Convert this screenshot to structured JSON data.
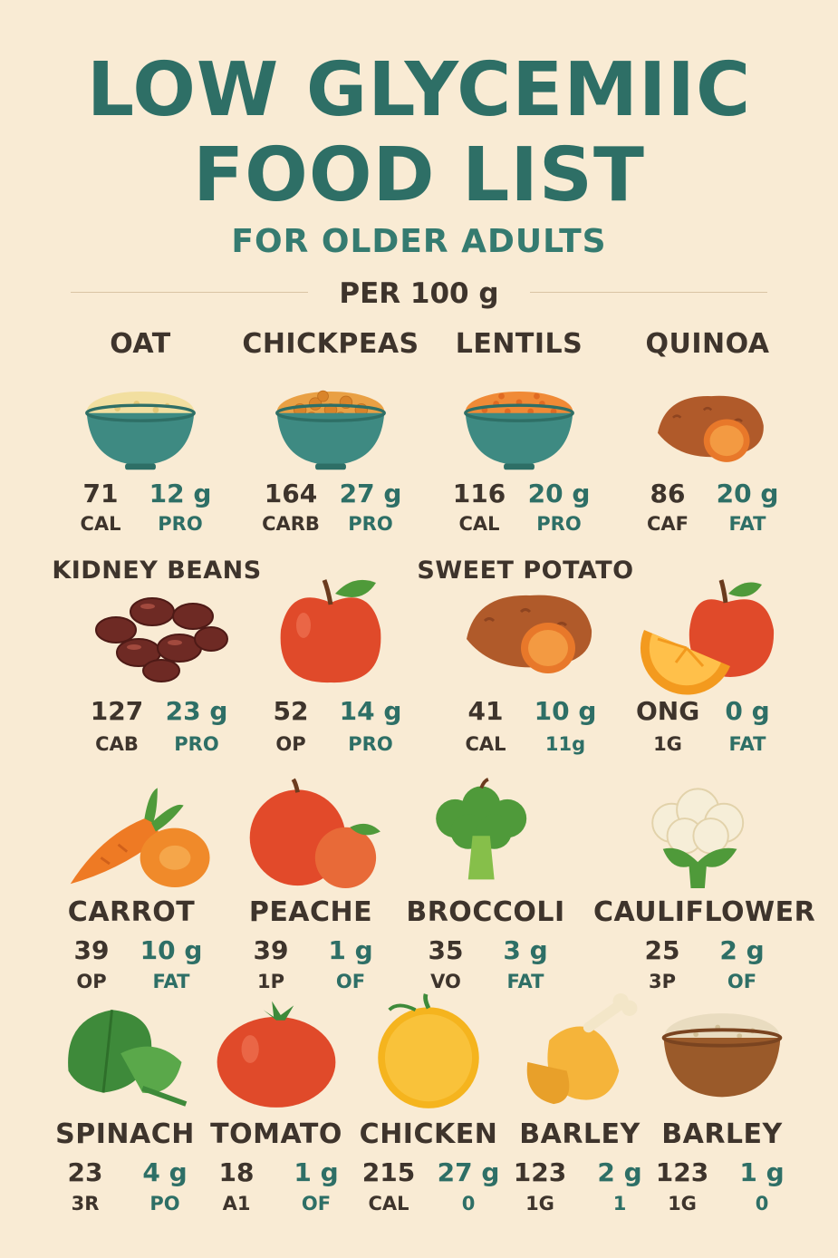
{
  "title": {
    "line1": "LOW GLYCEMIIC",
    "line2": "FOOD LIST",
    "subtitle": "FOR OLDER ADULTS",
    "per": "PER 100 g"
  },
  "colors": {
    "title": "#2e6f66",
    "background": "#f9ebd4",
    "text": "#3e342c",
    "accent_values": "#2e6f66"
  },
  "rows": [
    {
      "items": [
        {
          "name": "OAT",
          "icon": "oat-bowl-icon",
          "v1": "71",
          "l1": "CAL",
          "v2": "12 g",
          "l2": "PRO"
        },
        {
          "name": "CHICKPEAS",
          "icon": "chickpeas-bowl-icon",
          "v1": "164",
          "l1": "CARB",
          "v2": "27 g",
          "l2": "PRO"
        },
        {
          "name": "LENTILS",
          "icon": "lentils-bowl-icon",
          "v1": "116",
          "l1": "CAL",
          "v2": "20 g",
          "l2": "PRO"
        },
        {
          "name": "QUINOA",
          "icon": "sweet-potato-icon",
          "v1": "86",
          "l1": "CAF",
          "v2": "20 g",
          "l2": "FAT"
        }
      ]
    },
    {
      "items": [
        {
          "name": "KIDNEY BEANS",
          "icon": "kidney-beans-icon",
          "v1": "127",
          "l1": "CAB",
          "v2": "23 g",
          "l2": "PRO"
        },
        {
          "name": "",
          "icon": "apple-icon",
          "v1": "52",
          "l1": "OP",
          "v2": "14 g",
          "l2": "PRO"
        },
        {
          "name": "SWEET POTATO",
          "icon": "sweet-potato-icon",
          "v1": "41",
          "l1": "CAL",
          "v2": "10 g",
          "l2": "11g"
        },
        {
          "name": "",
          "icon": "orange-apple-icon",
          "v1": "ONG",
          "l1": "1G",
          "v2": "0 g",
          "l2": "FAT"
        }
      ]
    },
    {
      "items": [
        {
          "name": "CARROT",
          "icon": "carrot-icon",
          "v1": "39",
          "l1": "OP",
          "v2": "10 g",
          "l2": "FAT"
        },
        {
          "name": "PEACHE",
          "icon": "peach-icon",
          "v1": "39",
          "l1": "1P",
          "v2": "1 g",
          "l2": "OF"
        },
        {
          "name": "BROCCOLI",
          "icon": "broccoli-icon",
          "v1": "35",
          "l1": "VO",
          "v2": "3 g",
          "l2": "FAT"
        },
        {
          "name": "CAULIFLOWER",
          "icon": "cauliflower-icon",
          "v1": "25",
          "l1": "3P",
          "v2": "2 g",
          "l2": "OF"
        }
      ]
    },
    {
      "items": [
        {
          "name": "SPINACH",
          "icon": "spinach-icon",
          "v1": "23",
          "l1": "3R",
          "v2": "4 g",
          "l2": "PO"
        },
        {
          "name": "TOMATO",
          "icon": "tomato-icon",
          "v1": "18",
          "l1": "A1",
          "v2": "1 g",
          "l2": "OF"
        },
        {
          "name": "CHICKEN",
          "icon": "orange-icon",
          "v1": "215",
          "l1": "CAL",
          "v2": "27 g",
          "l2": "0"
        },
        {
          "name": "BARLEY",
          "icon": "chicken-leg-icon",
          "v1": "123",
          "l1": "1G",
          "v2": "2 g",
          "l2": "1"
        },
        {
          "name": "BARLEY",
          "icon": "barley-bowl-icon",
          "v1": "123",
          "l1": "1G",
          "v2": "1 g",
          "l2": "0"
        }
      ]
    }
  ]
}
